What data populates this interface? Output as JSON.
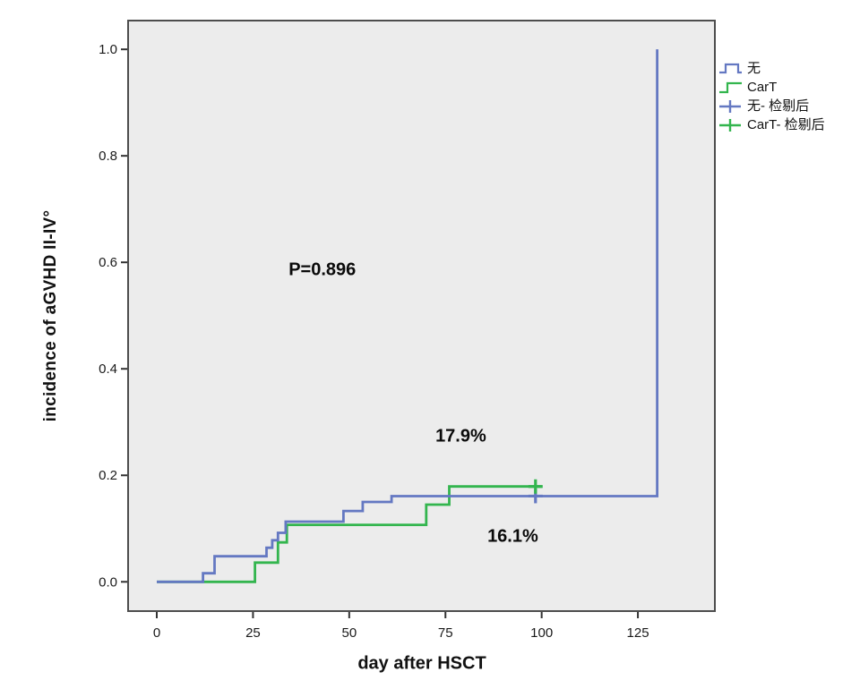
{
  "figure": {
    "background": "#ffffff",
    "plot_background": "#ececec",
    "border_color": "#4d4d4d",
    "tick_color": "#333333"
  },
  "colors": {
    "blue": "#6478c2",
    "green": "#33b54e",
    "text": "#111111"
  },
  "legend": {
    "items": [
      {
        "label": "无",
        "symbol": "step",
        "color_key": "blue"
      },
      {
        "label": "CarT",
        "symbol": "step",
        "color_key": "green"
      },
      {
        "label": "无- 检剔后",
        "symbol": "censor",
        "color_key": "blue"
      },
      {
        "label": "CarT- 检剔后",
        "symbol": "censor",
        "color_key": "green"
      }
    ]
  },
  "chart_data": {
    "type": "line",
    "subtype": "kaplan-meier-cumulative-incidence-step",
    "title": "",
    "xlabel": "day after HSCT",
    "ylabel": "incidence of aGVHD II-IV°",
    "xlim": [
      -7.45,
      145.0
    ],
    "ylim": [
      -0.055,
      1.054
    ],
    "grid": false,
    "legend_position": "outside-top-right",
    "xticks": [
      "0",
      "25",
      "50",
      "75",
      "100",
      "125"
    ],
    "xtick_values": [
      0,
      25,
      50,
      75,
      100,
      125
    ],
    "yticks": [
      "0.0",
      "0.2",
      "0.4",
      "0.6",
      "0.8",
      "1.0"
    ],
    "ytick_values": [
      0.0,
      0.2,
      0.4,
      0.6,
      0.8,
      1.0
    ],
    "series": [
      {
        "name": "无",
        "color": "#6478c2",
        "final_value_label": "16.1%",
        "points": [
          [
            0,
            0
          ],
          [
            12,
            0
          ],
          [
            12,
            0.016
          ],
          [
            15,
            0.016
          ],
          [
            15,
            0.048
          ],
          [
            28.5,
            0.048
          ],
          [
            28.5,
            0.064
          ],
          [
            30,
            0.064
          ],
          [
            30,
            0.078
          ],
          [
            31.5,
            0.078
          ],
          [
            31.5,
            0.092
          ],
          [
            33.5,
            0.092
          ],
          [
            33.5,
            0.113
          ],
          [
            48.5,
            0.113
          ],
          [
            48.5,
            0.133
          ],
          [
            53.5,
            0.133
          ],
          [
            53.5,
            0.15
          ],
          [
            61,
            0.15
          ],
          [
            61,
            0.161
          ],
          [
            130,
            0.161
          ],
          [
            130,
            1.0
          ]
        ]
      },
      {
        "name": "CarT",
        "color": "#33b54e",
        "final_value_label": "17.9%",
        "points": [
          [
            0,
            0
          ],
          [
            25.5,
            0
          ],
          [
            25.5,
            0.036
          ],
          [
            31.5,
            0.036
          ],
          [
            31.5,
            0.074
          ],
          [
            33.8,
            0.074
          ],
          [
            33.8,
            0.107
          ],
          [
            70,
            0.107
          ],
          [
            70,
            0.145
          ],
          [
            76,
            0.145
          ],
          [
            76,
            0.179
          ],
          [
            100,
            0.179
          ]
        ]
      }
    ],
    "censor_marks": [
      {
        "series": "无",
        "x": 98.4,
        "y": 0.161
      },
      {
        "series": "CarT",
        "x": 98.4,
        "y": 0.179
      }
    ],
    "annotations": [
      {
        "text": "P=0.896",
        "x": 43,
        "y": 0.585
      },
      {
        "text": "17.9%",
        "x": 79,
        "y": 0.272
      },
      {
        "text": "16.1%",
        "x": 92.5,
        "y": 0.084
      }
    ]
  }
}
